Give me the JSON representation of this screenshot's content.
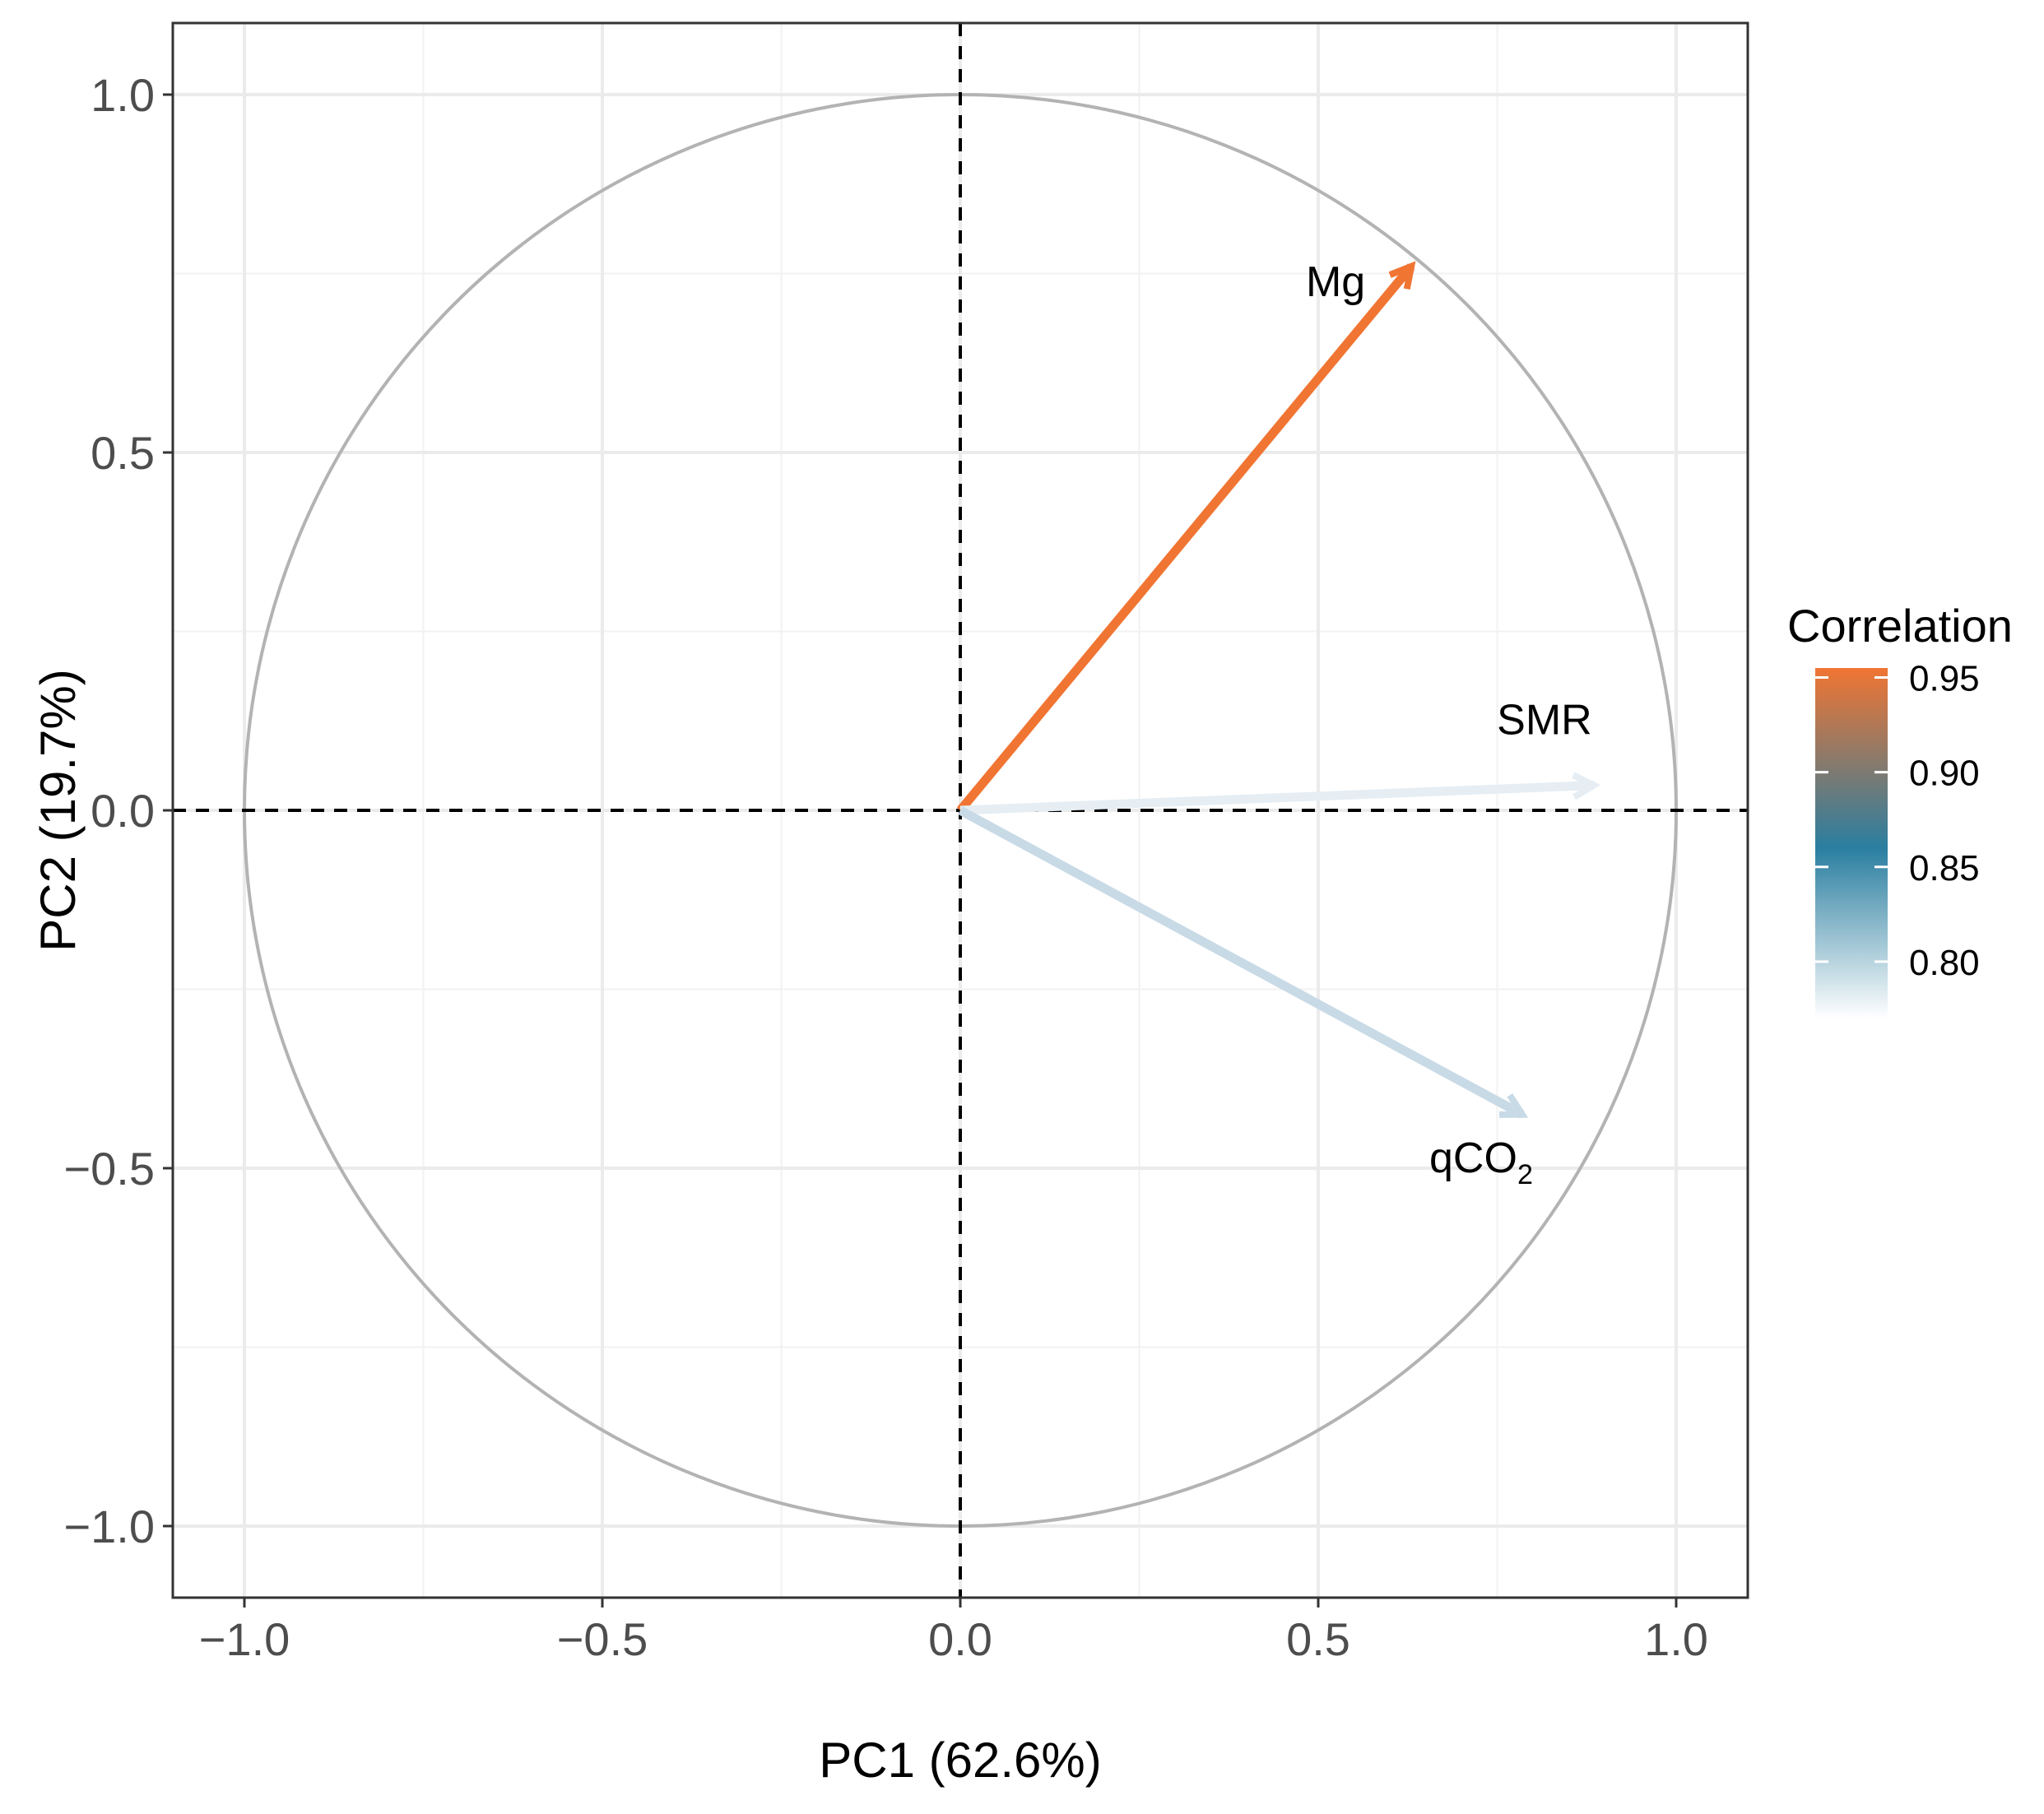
{
  "chart_data": {
    "type": "pca-correlation-circle",
    "xlabel": "PC1 (62.6%)",
    "ylabel": "PC2 (19.7%)",
    "xlim": [
      -1.1,
      1.1
    ],
    "ylim": [
      -1.1,
      1.1
    ],
    "x_ticks": [
      {
        "value": -1.0,
        "label": "−1.0"
      },
      {
        "value": -0.5,
        "label": "−0.5"
      },
      {
        "value": 0.0,
        "label": "0.0"
      },
      {
        "value": 0.5,
        "label": "0.5"
      },
      {
        "value": 1.0,
        "label": "1.0"
      }
    ],
    "y_ticks": [
      {
        "value": 1.0,
        "label": "1.0"
      },
      {
        "value": 0.5,
        "label": "0.5"
      },
      {
        "value": 0.0,
        "label": "0.0"
      },
      {
        "value": -0.5,
        "label": "−0.5"
      },
      {
        "value": -1.0,
        "label": "−1.0"
      }
    ],
    "grid": true,
    "unit_circle": true,
    "reference_lines": [
      {
        "axis": "x",
        "value": 0
      },
      {
        "axis": "y",
        "value": 0
      }
    ],
    "vectors": [
      {
        "name": "Mg",
        "x": 0.63,
        "y": 0.76,
        "correlation": 0.96,
        "color": "#f07533"
      },
      {
        "name": "SMR",
        "x": 0.885,
        "y": 0.035,
        "correlation": 0.785,
        "color": "#e6eef4"
      },
      {
        "name": "qCO₂",
        "label_main": "qCO",
        "label_sub": "2",
        "x": 0.785,
        "y": -0.425,
        "correlation": 0.81,
        "color": "#c8dae6"
      }
    ],
    "legend": {
      "title": "Correlation",
      "position": "right",
      "range": [
        0.77,
        0.955
      ],
      "breaks": [
        {
          "value": 0.95,
          "label": "0.95"
        },
        {
          "value": 0.9,
          "label": "0.90"
        },
        {
          "value": 0.85,
          "label": "0.85"
        },
        {
          "value": 0.8,
          "label": "0.80"
        }
      ],
      "gradient": [
        {
          "value": 0.77,
          "color": "#ffffff"
        },
        {
          "value": 0.86,
          "color": "#2a7ea0"
        },
        {
          "value": 0.955,
          "color": "#f07533"
        }
      ]
    }
  }
}
